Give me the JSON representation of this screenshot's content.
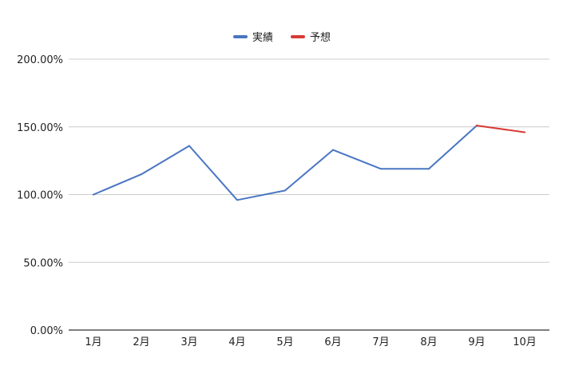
{
  "chart_data": {
    "type": "line",
    "categories": [
      "1月",
      "2月",
      "3月",
      "4月",
      "5月",
      "6月",
      "7月",
      "8月",
      "9月",
      "10月"
    ],
    "y_ticks": [
      "0.00%",
      "50.00%",
      "100.00%",
      "150.00%",
      "200.00%"
    ],
    "ylim": [
      0,
      200
    ],
    "grid": true,
    "legend_position": "top-center",
    "series": [
      {
        "name": "実績",
        "color": "#4a76c2",
        "values": [
          100,
          115,
          136,
          96,
          103,
          133,
          119,
          119,
          151,
          null
        ]
      },
      {
        "name": "予想",
        "color": "#d83b35",
        "values": [
          null,
          null,
          null,
          null,
          null,
          null,
          null,
          null,
          151,
          146
        ]
      }
    ]
  }
}
